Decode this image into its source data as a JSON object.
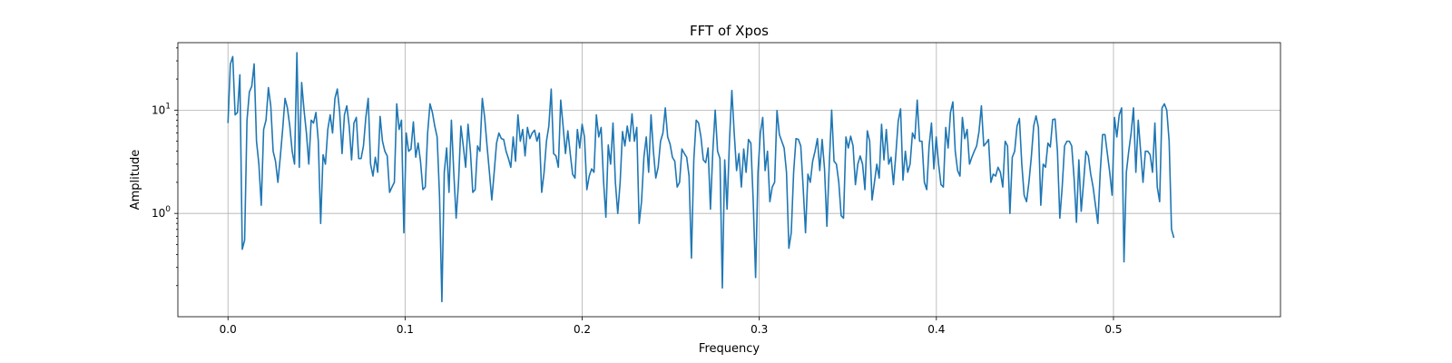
{
  "chart_data": {
    "type": "line",
    "title": "FFT of Xpos",
    "xlabel": "Frequency",
    "ylabel": "Amplitude",
    "xlim": [
      -0.0283,
      0.5943
    ],
    "ylim": [
      0.1,
      45
    ],
    "yscale": "log",
    "grid": true,
    "x_ticks": [
      {
        "value": 0.0,
        "label": "0.0"
      },
      {
        "value": 0.1,
        "label": "0.1"
      },
      {
        "value": 0.2,
        "label": "0.2"
      },
      {
        "value": 0.3,
        "label": "0.3"
      },
      {
        "value": 0.4,
        "label": "0.4"
      },
      {
        "value": 0.5,
        "label": "0.5"
      }
    ],
    "y_ticks": [
      {
        "value": 1,
        "base": "10",
        "exp": "0"
      },
      {
        "value": 10,
        "base": "10",
        "exp": "1"
      }
    ],
    "series": [
      {
        "color": "#1f77b4",
        "x_start": 0.0,
        "x_step": 0.001342,
        "y": [
          7.5,
          28,
          33,
          9,
          9.5,
          22,
          0.45,
          0.55,
          8,
          15,
          17,
          28,
          5,
          3,
          1.2,
          6.5,
          8,
          16.5,
          11,
          4,
          3.2,
          2,
          3.5,
          6.5,
          13,
          10.5,
          7,
          4,
          3,
          36,
          2.8,
          18.5,
          10,
          6,
          3,
          8,
          7.5,
          9.5,
          5,
          0.8,
          3.7,
          3,
          6.5,
          9,
          6,
          13,
          16,
          9.5,
          3.8,
          9,
          11,
          7,
          3.3,
          7.5,
          8.5,
          3.4,
          3.4,
          4.5,
          8.5,
          13,
          3,
          2.3,
          3.5,
          2.5,
          8.7,
          5,
          4,
          3.6,
          1.6,
          1.8,
          2,
          11.5,
          6.5,
          8,
          0.65,
          6,
          4,
          4.2,
          7.7,
          3.5,
          4.8,
          3.2,
          1.7,
          1.8,
          6,
          11.5,
          9.5,
          7,
          5.5,
          1.5,
          0.14,
          2.5,
          4.3,
          1.6,
          8,
          2.5,
          0.9,
          2,
          7,
          4.5,
          2.8,
          7.3,
          4,
          1.6,
          1.7,
          4.5,
          4,
          13,
          8.5,
          4.5,
          2.5,
          1.35,
          2.5,
          4.8,
          6,
          5.3,
          5.2,
          4,
          3.4,
          2.8,
          5.5,
          3.2,
          9,
          5,
          6.5,
          3.6,
          6.8,
          5.3,
          6,
          6.4,
          5,
          6,
          1.6,
          2.5,
          5,
          7,
          16,
          3.8,
          3.6,
          2.8,
          12.5,
          7,
          3.8,
          6.3,
          3.8,
          2.4,
          2.2,
          6.5,
          4.3,
          7.3,
          5.5,
          1.7,
          2.3,
          2.7,
          2.5,
          9,
          5.5,
          6.8,
          2.1,
          0.92,
          4.6,
          3,
          7.5,
          2,
          1,
          2,
          6.2,
          4.5,
          7,
          5,
          9.2,
          5,
          6.8,
          0.8,
          1.3,
          3.5,
          5.5,
          2.5,
          9,
          4,
          2.2,
          2.8,
          5,
          6,
          10.5,
          5.5,
          4.7,
          3.5,
          3.2,
          1.8,
          2,
          4.2,
          3.8,
          3.5,
          2.3,
          0.37,
          3.3,
          8,
          7.5,
          5.5,
          3.3,
          3.1,
          4.3,
          1.1,
          4,
          10,
          4,
          3.4,
          0.19,
          3.3,
          1.1,
          5,
          15.5,
          6,
          2.6,
          3.8,
          1.8,
          4.2,
          2.5,
          5.2,
          4.8,
          1.3,
          0.24,
          2.5,
          6,
          8.5,
          2.6,
          4,
          1.3,
          1.8,
          2,
          9.9,
          5.8,
          5,
          4.3,
          2.5,
          0.46,
          0.65,
          2.5,
          5.3,
          5.2,
          4.5,
          1.8,
          0.65,
          2.4,
          2,
          3.2,
          4,
          5.3,
          2.6,
          5.2,
          2.7,
          0.75,
          3,
          10,
          3.2,
          3,
          2,
          0.95,
          0.9,
          5.5,
          4.3,
          5.6,
          4.5,
          1.9,
          3,
          3.6,
          3,
          1.7,
          6.3,
          5,
          1.35,
          2,
          3,
          2.2,
          7.3,
          3.3,
          6.5,
          3,
          3.5,
          1.9,
          3.7,
          7.8,
          10.3,
          2.1,
          4,
          2.5,
          3,
          6,
          5.3,
          12.5,
          5,
          5,
          2,
          1.7,
          4.5,
          7.5,
          2.7,
          5.5,
          3,
          1.9,
          1.8,
          6.8,
          4.3,
          9.5,
          12,
          4,
          2.6,
          2.3,
          8.5,
          5.3,
          6.5,
          3,
          3.5,
          4,
          4.5,
          6.2,
          11,
          4.5,
          4.8,
          5.2,
          2,
          2.4,
          2.3,
          2.8,
          2.5,
          1.8,
          5,
          4.5,
          1,
          3.5,
          4,
          7,
          8.3,
          3,
          1.5,
          1.3,
          2,
          3.5,
          7,
          8.8,
          6.8,
          1.2,
          3,
          2.8,
          4.8,
          4.4,
          8.1,
          8.2,
          4,
          0.9,
          1.8,
          4.5,
          5,
          5,
          4.5,
          2.2,
          0.82,
          3.3,
          1.05,
          2,
          4,
          3.6,
          2.4,
          1.8,
          1.2,
          0.8,
          2.5,
          5.8,
          5.8,
          3.8,
          2.5,
          1.5,
          8.5,
          5.5,
          9,
          10.5,
          0.34,
          2.5,
          4,
          6,
          10.5,
          2.5,
          8,
          4,
          2,
          4,
          4,
          3.7,
          2.5,
          7.5,
          1.8,
          1.3,
          10.5,
          11.5,
          10,
          5,
          0.7,
          0.58
        ]
      }
    ]
  }
}
